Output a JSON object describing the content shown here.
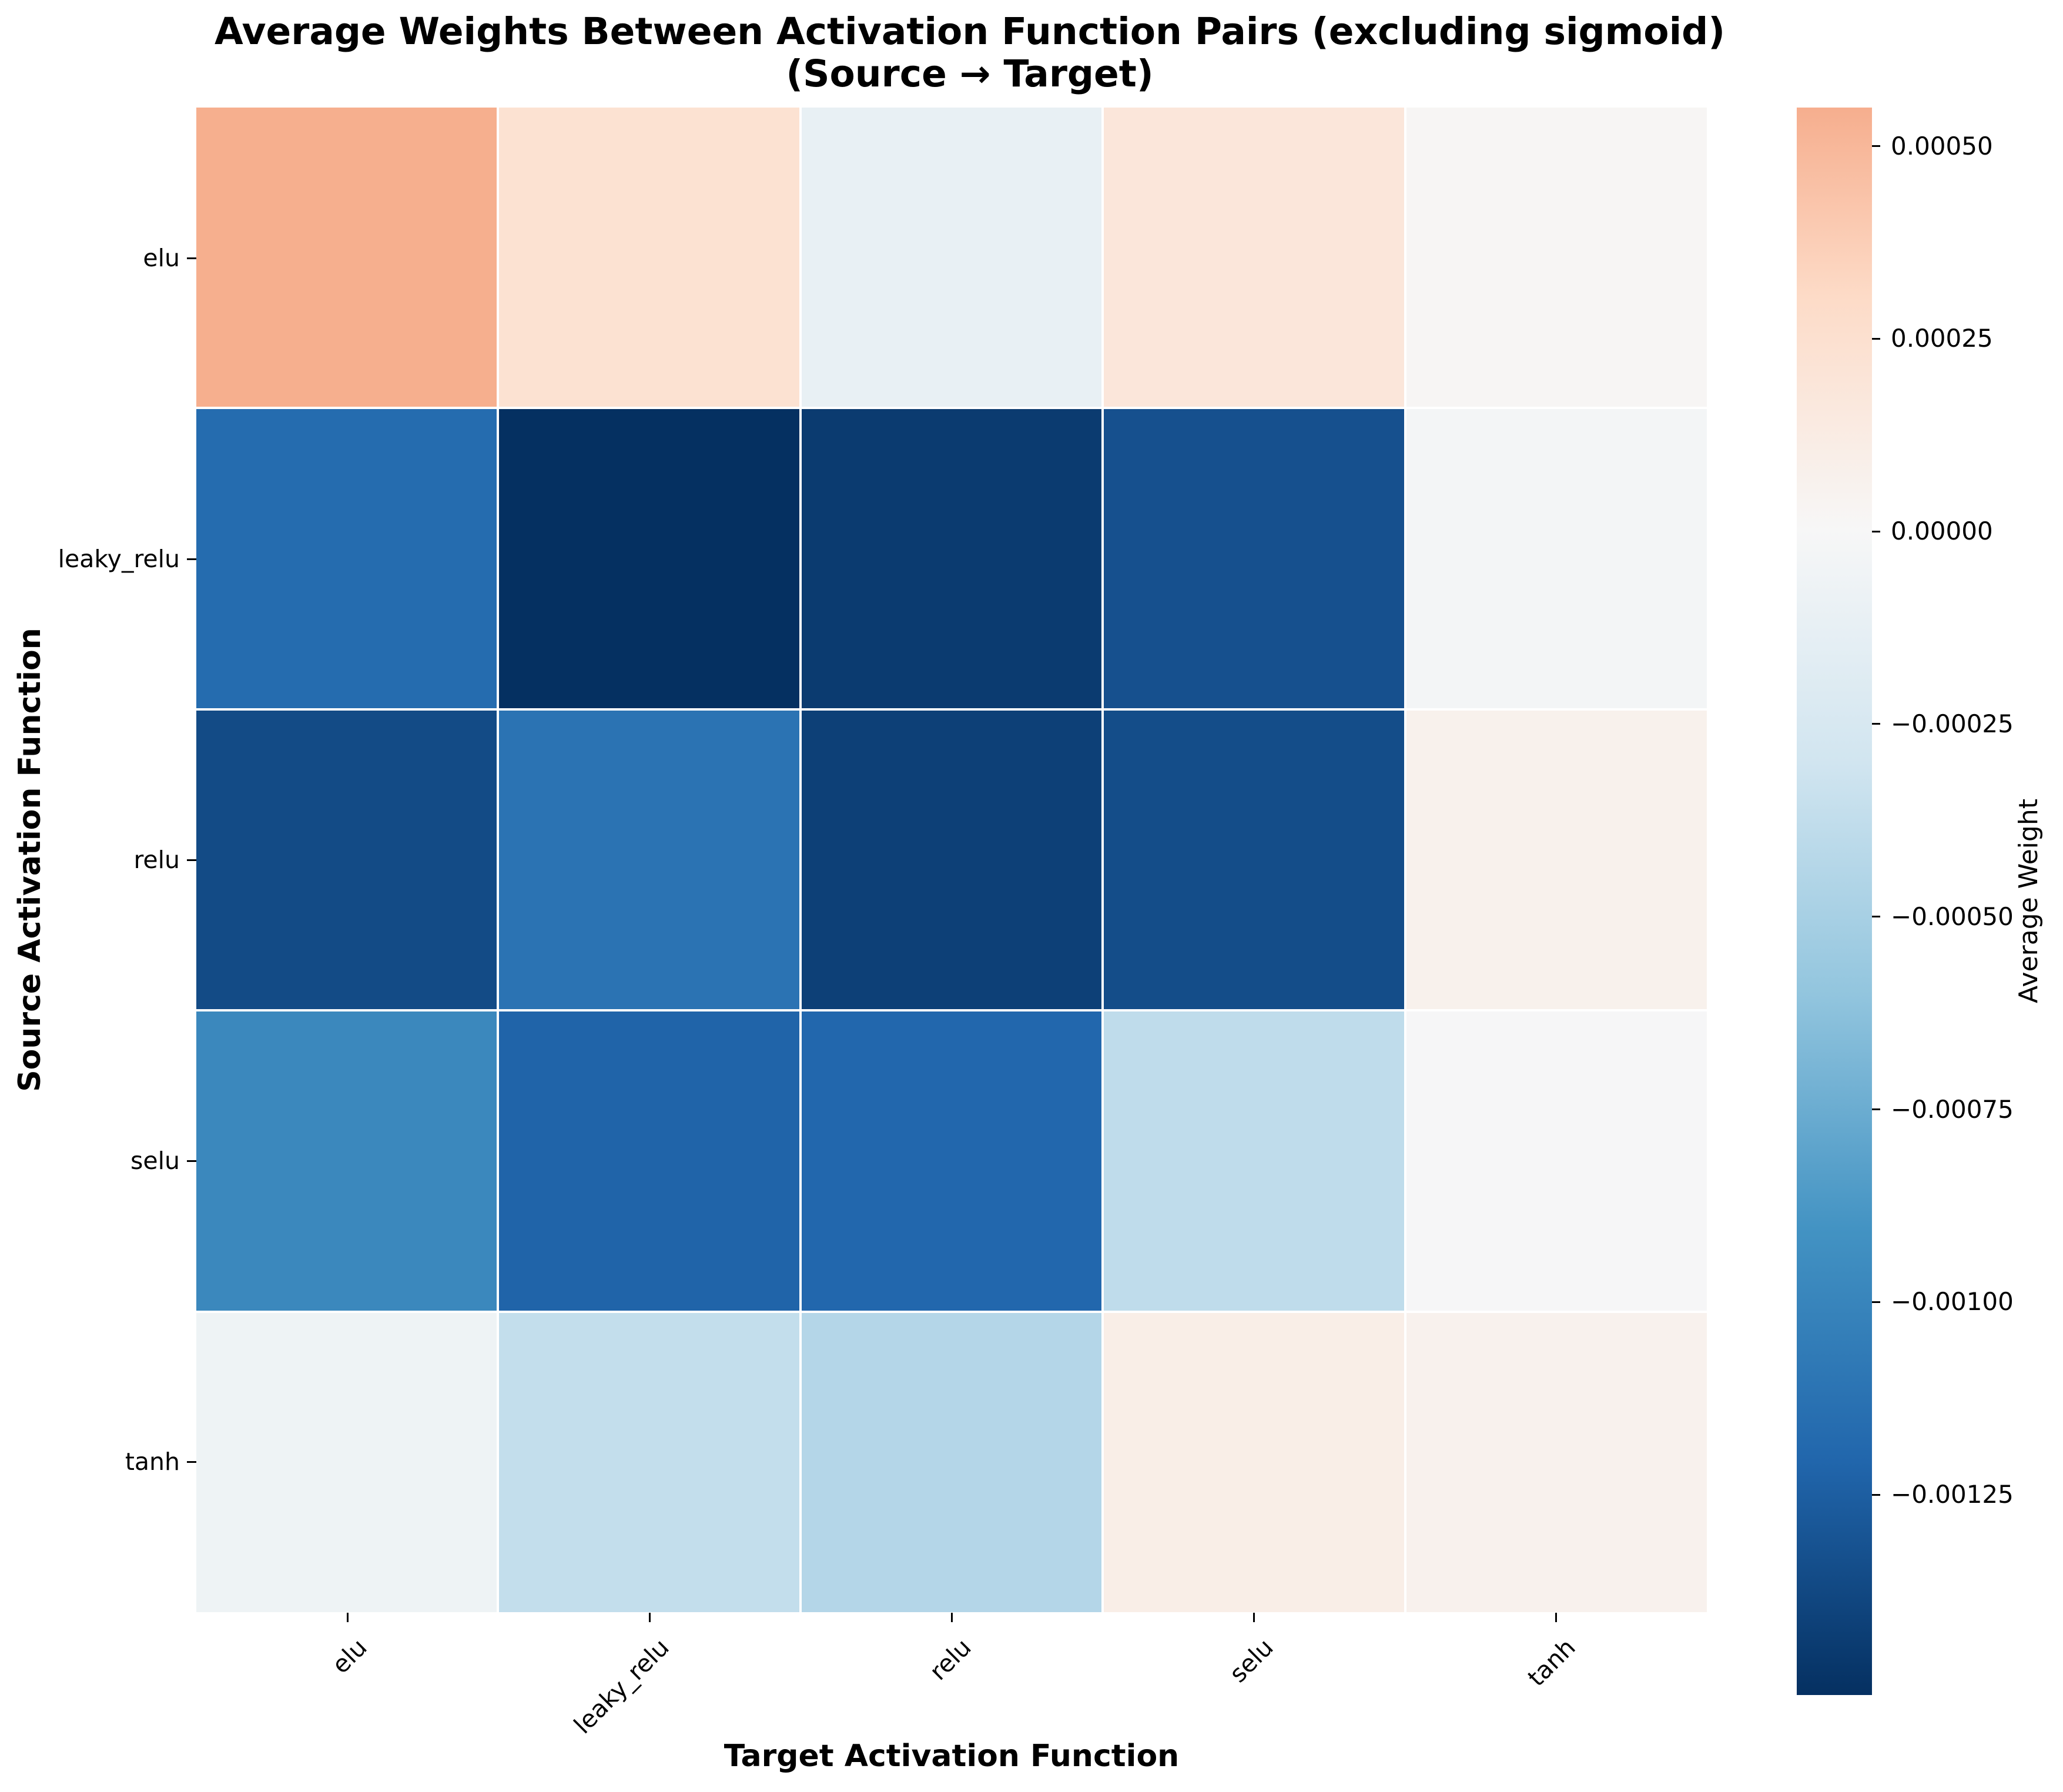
{
  "title": {
    "line1": "Average Weights Between Activation Function Pairs (excluding sigmoid)",
    "line2": "(Source → Target)"
  },
  "axes": {
    "x_label": "Target Activation Function",
    "y_label": "Source Activation Function",
    "x_ticks": [
      "elu",
      "leaky_relu",
      "relu",
      "selu",
      "tanh"
    ],
    "y_ticks": [
      "elu",
      "leaky_relu",
      "relu",
      "selu",
      "tanh"
    ]
  },
  "colorbar": {
    "label": "Average Weight",
    "tick_labels": [
      "0.00050",
      "0.00025",
      "0.00000",
      "−0.00025",
      "−0.00050",
      "−0.00075",
      "−0.00100",
      "−0.00125"
    ],
    "tick_values": [
      0.0005,
      0.00025,
      0.0,
      -0.00025,
      -0.0005,
      -0.00075,
      -0.001,
      -0.00125
    ]
  },
  "chart_data": {
    "type": "heatmap",
    "title": "Average Weights Between Activation Function Pairs (excluding sigmoid) (Source → Target)",
    "xlabel": "Target Activation Function",
    "ylabel": "Source Activation Function",
    "rows": [
      "elu",
      "leaky_relu",
      "relu",
      "selu",
      "tanh"
    ],
    "columns": [
      "elu",
      "leaky_relu",
      "relu",
      "selu",
      "tanh"
    ],
    "values": [
      [
        0.00055,
        0.00023,
        -0.00012,
        0.00018,
        2e-05
      ],
      [
        -0.00117,
        -0.00151,
        -0.00145,
        -0.00133,
        -3e-05
      ],
      [
        -0.00136,
        -0.00112,
        -0.00142,
        -0.00135,
        7e-05
      ],
      [
        -0.00098,
        -0.00122,
        -0.0012,
        -0.00039,
        -1e-05
      ],
      [
        -7e-05,
        -0.00037,
        -0.00044,
        0.0001,
        6e-05
      ]
    ],
    "color_scale": {
      "colormap": "RdBu_r",
      "center": 0,
      "vmin": -0.00151,
      "vmax": 0.00055,
      "anchor_colors": [
        "#053061",
        "#2166ac",
        "#4393c3",
        "#92c5de",
        "#d1e5f0",
        "#f7f7f7",
        "#fddbc7",
        "#f4a582",
        "#d6604d",
        "#b2182b",
        "#67001f"
      ]
    },
    "grid": true,
    "legend_position": "right-colorbar"
  }
}
